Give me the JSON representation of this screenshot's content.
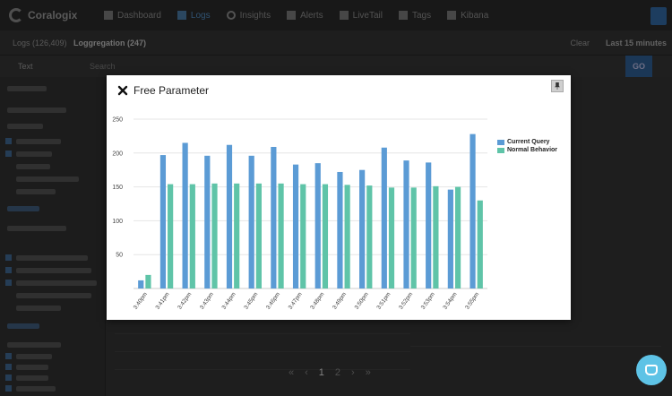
{
  "app": {
    "brand": "Coralogix",
    "nav": [
      {
        "label": "Dashboard",
        "icon": "dashboard-icon",
        "active": false
      },
      {
        "label": "Logs",
        "icon": "logs-icon",
        "active": true
      },
      {
        "label": "Insights",
        "icon": "insights-icon",
        "active": false
      },
      {
        "label": "Alerts",
        "icon": "flag-icon",
        "active": false
      },
      {
        "label": "LiveTail",
        "icon": "livetail-icon",
        "active": false
      },
      {
        "label": "Tags",
        "icon": "tag-icon",
        "active": false
      },
      {
        "label": "Kibana",
        "icon": "kibana-icon",
        "active": false
      }
    ],
    "tabs": {
      "logs": "Logs (126,409)",
      "loggregation": "Loggregation (247)"
    },
    "clear_label": "Clear",
    "time_range": "Last 15 minutes",
    "query_text": "Text",
    "search_placeholder": "Search",
    "go_label": "GO"
  },
  "pagination": {
    "pages": [
      "1",
      "2"
    ]
  },
  "modal": {
    "title": "Free Parameter",
    "close_icon": "close-icon",
    "pin_icon": "pin-icon"
  },
  "colors": {
    "current_query": "#5b9bd5",
    "normal_behavior": "#5fc4a8"
  },
  "chart_data": {
    "type": "bar",
    "title": "",
    "xlabel": "",
    "ylabel": "",
    "ylim": [
      0,
      250
    ],
    "yticks": [
      50,
      100,
      150,
      200,
      250
    ],
    "grid": true,
    "legend_position": "right",
    "categories": [
      "3:40pm",
      "3:41pm",
      "3:42pm",
      "3:43pm",
      "3:44pm",
      "3:45pm",
      "3:46pm",
      "3:47pm",
      "3:48pm",
      "3:49pm",
      "3:50pm",
      "3:51pm",
      "3:52pm",
      "3:53pm",
      "3:54pm",
      "3:55pm"
    ],
    "series": [
      {
        "name": "Current Query",
        "color": "#5b9bd5",
        "values": [
          12,
          197,
          215,
          196,
          212,
          196,
          209,
          183,
          185,
          172,
          175,
          208,
          189,
          186,
          146,
          228
        ]
      },
      {
        "name": "Normal Behavior",
        "color": "#5fc4a8",
        "values": [
          20,
          154,
          154,
          155,
          155,
          155,
          155,
          154,
          154,
          153,
          152,
          149,
          149,
          151,
          150,
          130
        ]
      }
    ]
  }
}
